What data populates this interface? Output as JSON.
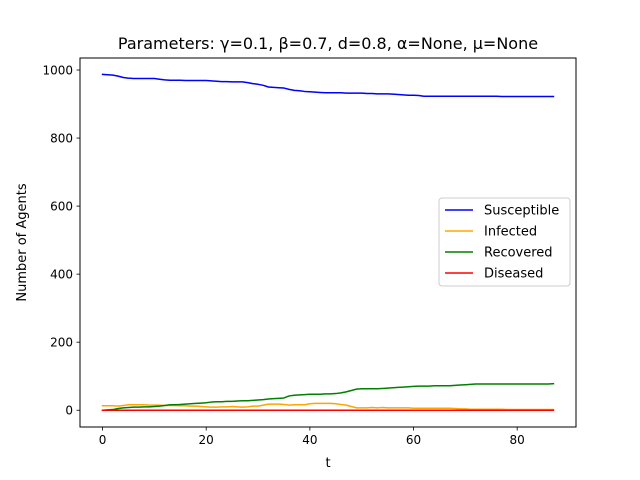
{
  "chart_data": {
    "type": "line",
    "title": "Parameters: γ=0.1, β=0.7, d=0.8, α=None, μ=None",
    "xlabel": "t",
    "ylabel": "Number of Agents",
    "xlim": [
      -4.35,
      91.35
    ],
    "ylim": [
      -49.3,
      1035.3
    ],
    "xticks": [
      0,
      20,
      40,
      60,
      80
    ],
    "yticks": [
      0,
      200,
      400,
      600,
      800,
      1000
    ],
    "grid": false,
    "legend_position": "center-right",
    "x": [
      0,
      1,
      2,
      3,
      4,
      5,
      6,
      7,
      8,
      9,
      10,
      11,
      12,
      13,
      14,
      15,
      16,
      17,
      18,
      19,
      20,
      21,
      22,
      23,
      24,
      25,
      26,
      27,
      28,
      29,
      30,
      31,
      32,
      33,
      34,
      35,
      36,
      37,
      38,
      39,
      40,
      41,
      42,
      43,
      44,
      45,
      46,
      47,
      48,
      49,
      50,
      51,
      52,
      53,
      54,
      55,
      56,
      57,
      58,
      59,
      60,
      61,
      62,
      63,
      64,
      65,
      66,
      67,
      68,
      69,
      70,
      71,
      72,
      73,
      74,
      75,
      76,
      77,
      78,
      79,
      80,
      81,
      82,
      83,
      84,
      85,
      86,
      87
    ],
    "series": [
      {
        "name": "Susceptible",
        "color": "#0000ff",
        "values": [
          987,
          986,
          985,
          982,
          978,
          976,
          975,
          975,
          975,
          975,
          975,
          973,
          971,
          970,
          970,
          970,
          969,
          969,
          969,
          969,
          969,
          968,
          967,
          966,
          966,
          965,
          965,
          965,
          963,
          960,
          958,
          955,
          950,
          949,
          948,
          947,
          943,
          940,
          939,
          937,
          936,
          935,
          934,
          933,
          933,
          933,
          933,
          932,
          932,
          932,
          932,
          931,
          931,
          930,
          930,
          930,
          929,
          928,
          927,
          926,
          926,
          925,
          923,
          923,
          923,
          923,
          923,
          923,
          923,
          923,
          923,
          923,
          923,
          923,
          923,
          923,
          923,
          922,
          922,
          922,
          922,
          922,
          922,
          922,
          922,
          922,
          922,
          922
        ]
      },
      {
        "name": "Infected",
        "color": "#ffa500",
        "values": [
          13,
          13,
          13,
          12,
          14,
          16,
          16,
          16,
          16,
          15,
          15,
          15,
          14,
          14,
          14,
          13,
          13,
          12,
          12,
          11,
          10,
          9,
          9,
          10,
          10,
          11,
          10,
          9,
          10,
          12,
          12,
          15,
          18,
          18,
          18,
          17,
          15,
          16,
          16,
          16,
          19,
          20,
          20,
          20,
          20,
          19,
          17,
          15,
          11,
          7,
          7,
          7,
          8,
          7,
          8,
          7,
          7,
          7,
          7,
          7,
          6,
          6,
          6,
          6,
          6,
          6,
          6,
          6,
          5,
          4,
          4,
          3,
          3,
          3,
          3,
          3,
          3,
          3,
          2,
          2,
          2,
          2,
          2,
          2,
          2,
          2,
          2,
          2
        ]
      },
      {
        "name": "Recovered",
        "color": "#008000",
        "values": [
          0,
          1,
          2,
          5,
          7,
          8,
          9,
          9,
          10,
          10,
          11,
          12,
          14,
          16,
          16,
          17,
          18,
          19,
          20,
          21,
          22,
          24,
          25,
          25,
          26,
          26,
          27,
          28,
          28,
          29,
          30,
          31,
          33,
          34,
          35,
          36,
          42,
          44,
          45,
          46,
          47,
          47,
          47,
          48,
          48,
          49,
          51,
          54,
          58,
          62,
          63,
          63,
          63,
          63,
          64,
          65,
          66,
          67,
          68,
          69,
          70,
          71,
          71,
          71,
          72,
          72,
          72,
          72,
          73,
          74,
          75,
          76,
          77,
          77,
          77,
          77,
          77,
          77,
          77,
          77,
          77,
          77,
          77,
          77,
          77,
          77,
          77,
          78
        ]
      },
      {
        "name": "Diseased",
        "color": "#ff0000",
        "values": [
          0,
          0,
          0,
          0,
          0,
          0,
          0,
          0,
          0,
          0,
          0,
          0,
          0,
          0,
          0,
          0,
          0,
          0,
          0,
          0,
          0,
          0,
          0,
          0,
          0,
          0,
          0,
          0,
          0,
          0,
          0,
          0,
          0,
          0,
          0,
          0,
          0,
          0,
          0,
          0,
          0,
          0,
          0,
          0,
          0,
          0,
          0,
          0,
          0,
          0,
          0,
          0,
          0,
          0,
          0,
          0,
          0,
          0,
          0,
          0,
          0,
          0,
          0,
          0,
          0,
          0,
          0,
          0,
          0,
          0,
          0,
          0,
          0,
          0,
          0,
          0,
          0,
          0,
          0,
          0,
          0,
          0,
          0,
          0,
          0,
          0,
          0,
          0
        ]
      }
    ]
  }
}
